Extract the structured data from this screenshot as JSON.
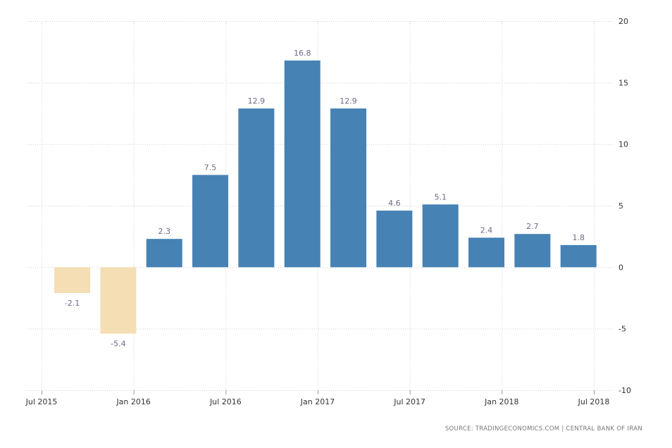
{
  "chart_data": {
    "type": "bar",
    "categories": [
      "Sep 2015",
      "Dec 2015",
      "Mar 2016",
      "Jun 2016",
      "Sep 2016",
      "Dec 2016",
      "Mar 2017",
      "Jun 2017",
      "Sep 2017",
      "Dec 2017",
      "Mar 2018",
      "Jun 2018"
    ],
    "category_month_index": [
      2,
      5,
      8,
      11,
      14,
      17,
      20,
      23,
      26,
      29,
      32,
      35
    ],
    "values": [
      -2.1,
      -5.4,
      2.3,
      7.5,
      12.9,
      16.8,
      12.9,
      4.6,
      5.1,
      2.4,
      2.7,
      1.8
    ],
    "data_labels": [
      "-2.1",
      "-5.4",
      "2.3",
      "7.5",
      "12.9",
      "16.8",
      "12.9",
      "4.6",
      "5.1",
      "2.4",
      "2.7",
      "1.8"
    ],
    "x_ticks": [
      {
        "label": "Jul 2015",
        "month_index": 0
      },
      {
        "label": "Jan 2016",
        "month_index": 6
      },
      {
        "label": "Jul 2016",
        "month_index": 12
      },
      {
        "label": "Jan 2017",
        "month_index": 18
      },
      {
        "label": "Jul 2017",
        "month_index": 24
      },
      {
        "label": "Jan 2018",
        "month_index": 30
      },
      {
        "label": "Jul 2018",
        "month_index": 36
      }
    ],
    "y_ticks": [
      "20",
      "15",
      "10",
      "5",
      "0",
      "-5",
      "-10"
    ],
    "ylim": [
      -10,
      20
    ],
    "y_axis_position": "right",
    "grid": true,
    "colors": {
      "positive": "#4682b4",
      "negative": "#f5deb3",
      "label": "#6a6a8a",
      "grid": "#d0d0d0"
    }
  },
  "source": "SOURCE: TRADINGECONOMICS.COM  |  CENTRAL BANK OF IRAN"
}
